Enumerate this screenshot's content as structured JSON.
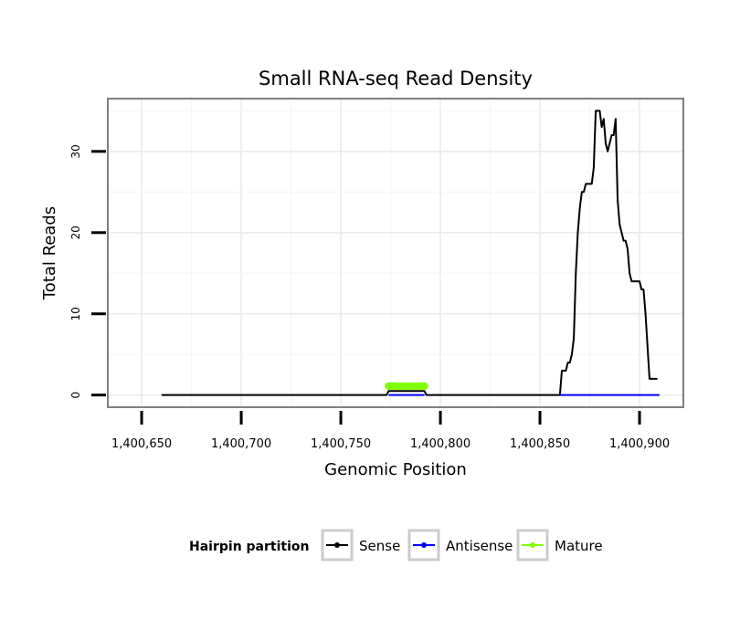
{
  "chart_data": {
    "type": "line",
    "title": "Small RNA-seq Read Density",
    "xlabel": "Genomic Position",
    "ylabel": "Total Reads",
    "xlim": [
      1400633,
      1400922
    ],
    "ylim": [
      -1.5,
      36.5
    ],
    "x_ticks": [
      1400650,
      1400700,
      1400750,
      1400800,
      1400850,
      1400900
    ],
    "x_tick_labels": [
      "1,400,650",
      "1,400,700",
      "1,400,750",
      "1,400,800",
      "1,400,850",
      "1,400,900"
    ],
    "y_ticks": [
      0,
      10,
      20,
      30
    ],
    "y_tick_labels": [
      "0",
      "10",
      "20",
      "30"
    ],
    "grid": true,
    "legend": {
      "title": "Hairpin partition",
      "position": "bottom",
      "entries": [
        {
          "name": "Sense",
          "color": "#000000"
        },
        {
          "name": "Antisense",
          "color": "#0000ff"
        },
        {
          "name": "Mature",
          "color": "#7fff00"
        }
      ]
    },
    "series": [
      {
        "name": "Sense",
        "color": "#000000",
        "x": [
          1400660,
          1400773,
          1400774,
          1400792,
          1400793,
          1400860,
          1400861,
          1400863,
          1400864,
          1400865,
          1400866,
          1400867,
          1400868,
          1400869,
          1400870,
          1400871,
          1400872,
          1400873,
          1400874,
          1400876,
          1400877,
          1400878,
          1400879,
          1400880,
          1400881,
          1400882,
          1400883,
          1400884,
          1400885,
          1400886,
          1400887,
          1400888,
          1400889,
          1400890,
          1400891,
          1400892,
          1400893,
          1400894,
          1400895,
          1400896,
          1400897,
          1400898,
          1400900,
          1400901,
          1400902,
          1400903,
          1400904,
          1400905,
          1400906,
          1400907,
          1400908,
          1400909
        ],
        "values": [
          0,
          0,
          0.5,
          0.5,
          0,
          0,
          3,
          3,
          4,
          4,
          5,
          7,
          15,
          20,
          23,
          25,
          25,
          26,
          26,
          26,
          28,
          35,
          35,
          35,
          33,
          34,
          31,
          30,
          31,
          32,
          32,
          34,
          24,
          21,
          20,
          19,
          19,
          18,
          15,
          14,
          14,
          14,
          14,
          13,
          13,
          10,
          6,
          2,
          2,
          2,
          2,
          2
        ]
      },
      {
        "name": "Antisense",
        "color": "#0000ff",
        "x": [
          1400774,
          1400792,
          1400860,
          1400910
        ],
        "values": [
          0,
          0,
          0,
          0
        ]
      },
      {
        "name": "Mature",
        "color": "#7fff00",
        "x": [
          1400774,
          1400776,
          1400778,
          1400780,
          1400782,
          1400784,
          1400786,
          1400788,
          1400790,
          1400792
        ],
        "values": [
          1.1,
          1.1,
          1.1,
          1.1,
          1.1,
          1.1,
          1.1,
          1.1,
          1.1,
          1.1
        ]
      }
    ]
  }
}
